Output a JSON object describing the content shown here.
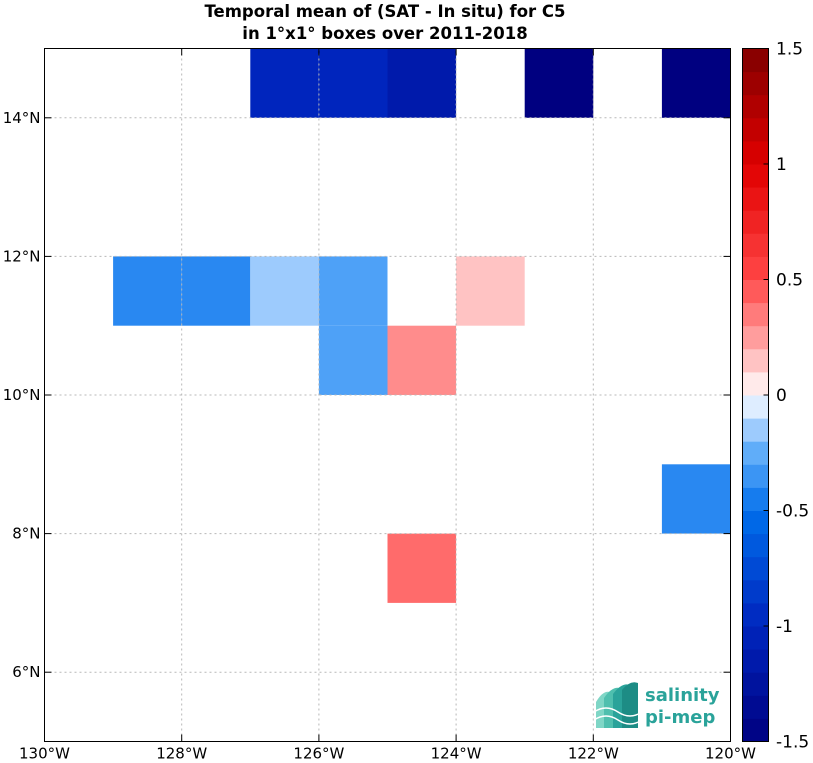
{
  "chart_data": {
    "type": "heatmap",
    "title": [
      "Temporal mean of (SAT - In situ) for C5",
      "in 1°x1° boxes over 2011-2018"
    ],
    "xlabel": "",
    "ylabel": "",
    "xlim": [
      -130,
      -120
    ],
    "ylim": [
      5,
      15
    ],
    "grid": true,
    "x_ticks": [
      {
        "value": -130,
        "label": "130°W"
      },
      {
        "value": -128,
        "label": "128°W"
      },
      {
        "value": -126,
        "label": "126°W"
      },
      {
        "value": -124,
        "label": "124°W"
      },
      {
        "value": -122,
        "label": "122°W"
      },
      {
        "value": -120,
        "label": "120°W"
      }
    ],
    "y_ticks": [
      {
        "value": 6,
        "label": "6°N"
      },
      {
        "value": 8,
        "label": "8°N"
      },
      {
        "value": 10,
        "label": "10°N"
      },
      {
        "value": 12,
        "label": "12°N"
      },
      {
        "value": 14,
        "label": "14°N"
      }
    ],
    "cells": [
      {
        "lon": -127,
        "lat": 14,
        "value": -1.0
      },
      {
        "lon": -126,
        "lat": 14,
        "value": -1.0
      },
      {
        "lon": -125,
        "lat": 14,
        "value": -1.15
      },
      {
        "lon": -123,
        "lat": 14,
        "value": -1.5
      },
      {
        "lon": -121,
        "lat": 14,
        "value": -1.5
      },
      {
        "lon": -129,
        "lat": 11,
        "value": -0.4
      },
      {
        "lon": -128,
        "lat": 11,
        "value": -0.4
      },
      {
        "lon": -127,
        "lat": 11,
        "value": -0.15
      },
      {
        "lon": -126,
        "lat": 11,
        "value": -0.3
      },
      {
        "lon": -124,
        "lat": 11,
        "value": 0.15
      },
      {
        "lon": -126,
        "lat": 10,
        "value": -0.3
      },
      {
        "lon": -125,
        "lat": 10,
        "value": 0.3
      },
      {
        "lon": -121,
        "lat": 8,
        "value": -0.4
      },
      {
        "lon": -125,
        "lat": 7,
        "value": 0.4
      }
    ],
    "colorbar": {
      "range": [
        -1.5,
        1.5
      ],
      "ticks": [
        {
          "value": 1.5,
          "label": "1.5"
        },
        {
          "value": 1,
          "label": "1"
        },
        {
          "value": 0.5,
          "label": "0.5"
        },
        {
          "value": 0,
          "label": "0"
        },
        {
          "value": -0.5,
          "label": "-0.5"
        },
        {
          "value": -1,
          "label": "-1"
        },
        {
          "value": -1.5,
          "label": "-1.5"
        }
      ]
    }
  },
  "logo": {
    "line1": "salinity",
    "line2": "pi-mep"
  }
}
